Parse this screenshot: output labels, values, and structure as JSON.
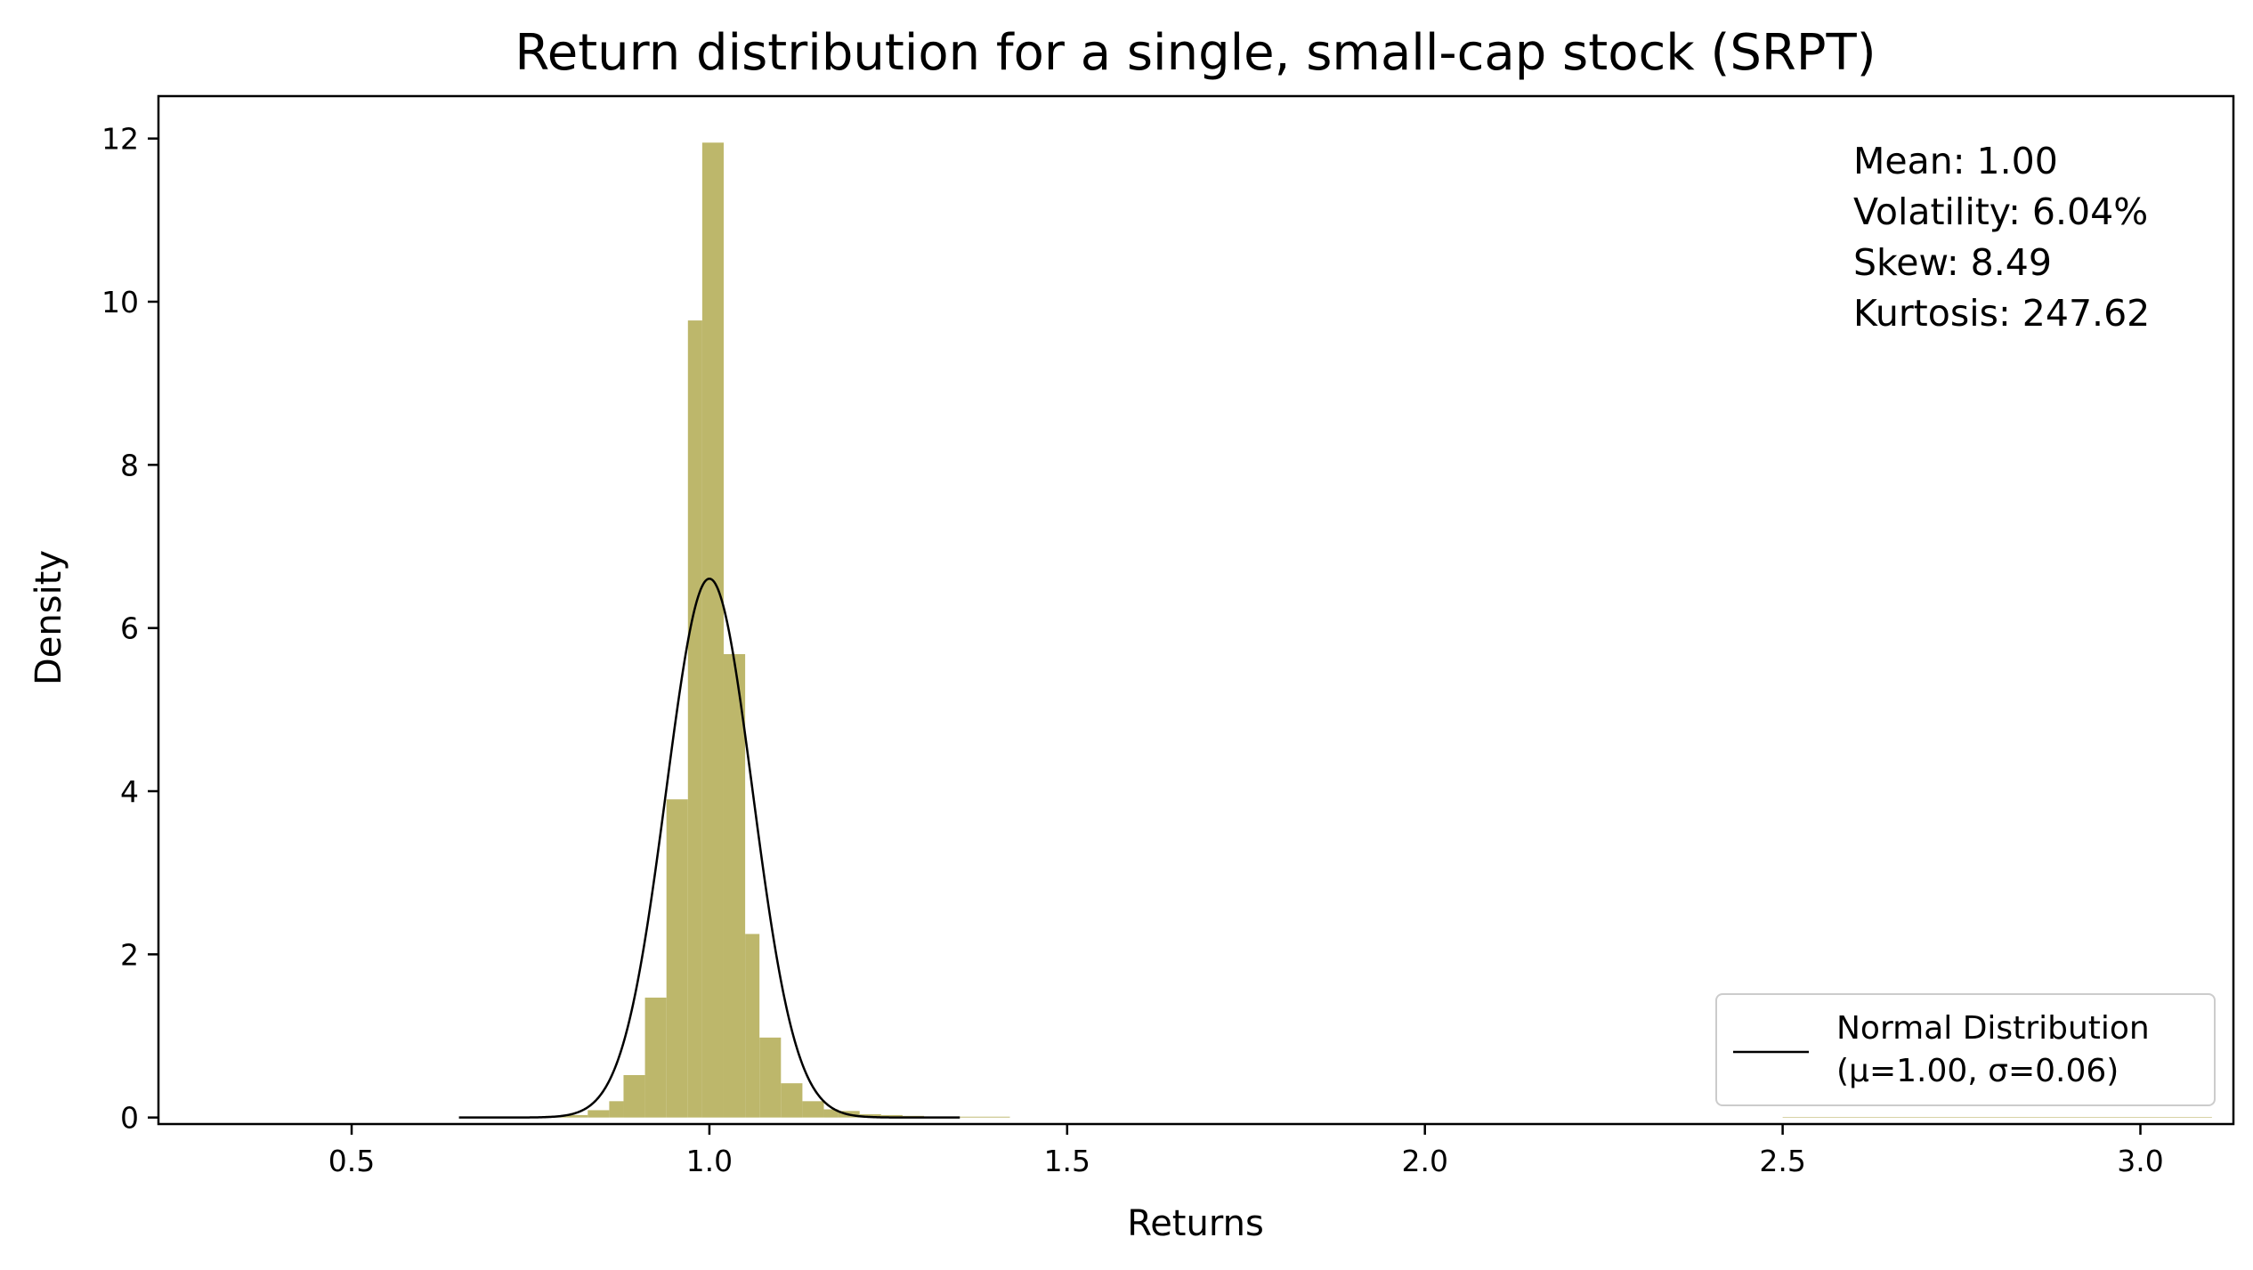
{
  "chart_data": {
    "type": "histogram",
    "title": "Return distribution for a single, small-cap stock (SRPT)",
    "xlabel": "Returns",
    "ylabel": "Density",
    "xlim": [
      0.23,
      3.13
    ],
    "ylim": [
      -0.08,
      12.52
    ],
    "xticks": [
      0.5,
      1.0,
      1.5,
      2.0,
      2.5,
      3.0
    ],
    "xtick_labels": [
      "0.5",
      "1.0",
      "1.5",
      "2.0",
      "2.5",
      "3.0"
    ],
    "yticks": [
      0,
      2,
      4,
      6,
      8,
      10,
      12
    ],
    "ytick_labels": [
      "0",
      "2",
      "4",
      "6",
      "8",
      "10",
      "12"
    ],
    "histogram": {
      "color": "#bdb76b",
      "bins": [
        {
          "x0": 0.71,
          "x1": 0.74,
          "density": 0.01
        },
        {
          "x0": 0.74,
          "x1": 0.77,
          "density": 0.01
        },
        {
          "x0": 0.77,
          "x1": 0.8,
          "density": 0.02
        },
        {
          "x0": 0.8,
          "x1": 0.83,
          "density": 0.03
        },
        {
          "x0": 0.83,
          "x1": 0.86,
          "density": 0.09
        },
        {
          "x0": 0.86,
          "x1": 0.88,
          "density": 0.2
        },
        {
          "x0": 0.88,
          "x1": 0.91,
          "density": 0.52
        },
        {
          "x0": 0.91,
          "x1": 0.94,
          "density": 1.47
        },
        {
          "x0": 0.94,
          "x1": 0.97,
          "density": 3.9
        },
        {
          "x0": 0.97,
          "x1": 0.99,
          "density": 9.77
        },
        {
          "x0": 0.99,
          "x1": 1.02,
          "density": 11.95
        },
        {
          "x0": 1.02,
          "x1": 1.05,
          "density": 5.68
        },
        {
          "x0": 1.05,
          "x1": 1.07,
          "density": 2.25
        },
        {
          "x0": 1.07,
          "x1": 1.1,
          "density": 0.98
        },
        {
          "x0": 1.1,
          "x1": 1.13,
          "density": 0.42
        },
        {
          "x0": 1.13,
          "x1": 1.16,
          "density": 0.2
        },
        {
          "x0": 1.16,
          "x1": 1.18,
          "density": 0.1
        },
        {
          "x0": 1.18,
          "x1": 1.21,
          "density": 0.08
        },
        {
          "x0": 1.21,
          "x1": 1.24,
          "density": 0.04
        },
        {
          "x0": 1.24,
          "x1": 1.27,
          "density": 0.03
        },
        {
          "x0": 1.27,
          "x1": 1.3,
          "density": 0.02
        },
        {
          "x0": 1.3,
          "x1": 1.35,
          "density": 0.01
        },
        {
          "x0": 1.35,
          "x1": 1.42,
          "density": 0.01
        },
        {
          "x0": 2.5,
          "x1": 3.1,
          "density": 0.003
        }
      ]
    },
    "normal_curve": {
      "name": "Normal Distribution\n(μ=1.00, σ=0.06)",
      "mu": 1.0,
      "sigma": 0.0604,
      "x_range": [
        0.65,
        1.35
      ],
      "color": "#000000"
    },
    "stats_lines": [
      "Mean: 1.00",
      "Volatility: 6.04%",
      "Skew: 8.49",
      "Kurtosis: 247.62"
    ],
    "legend": {
      "placement": "lower right",
      "entries": [
        {
          "lines": [
            "Normal Distribution",
            "(μ=1.00, σ=0.06)"
          ],
          "color": "#000000"
        }
      ]
    }
  }
}
